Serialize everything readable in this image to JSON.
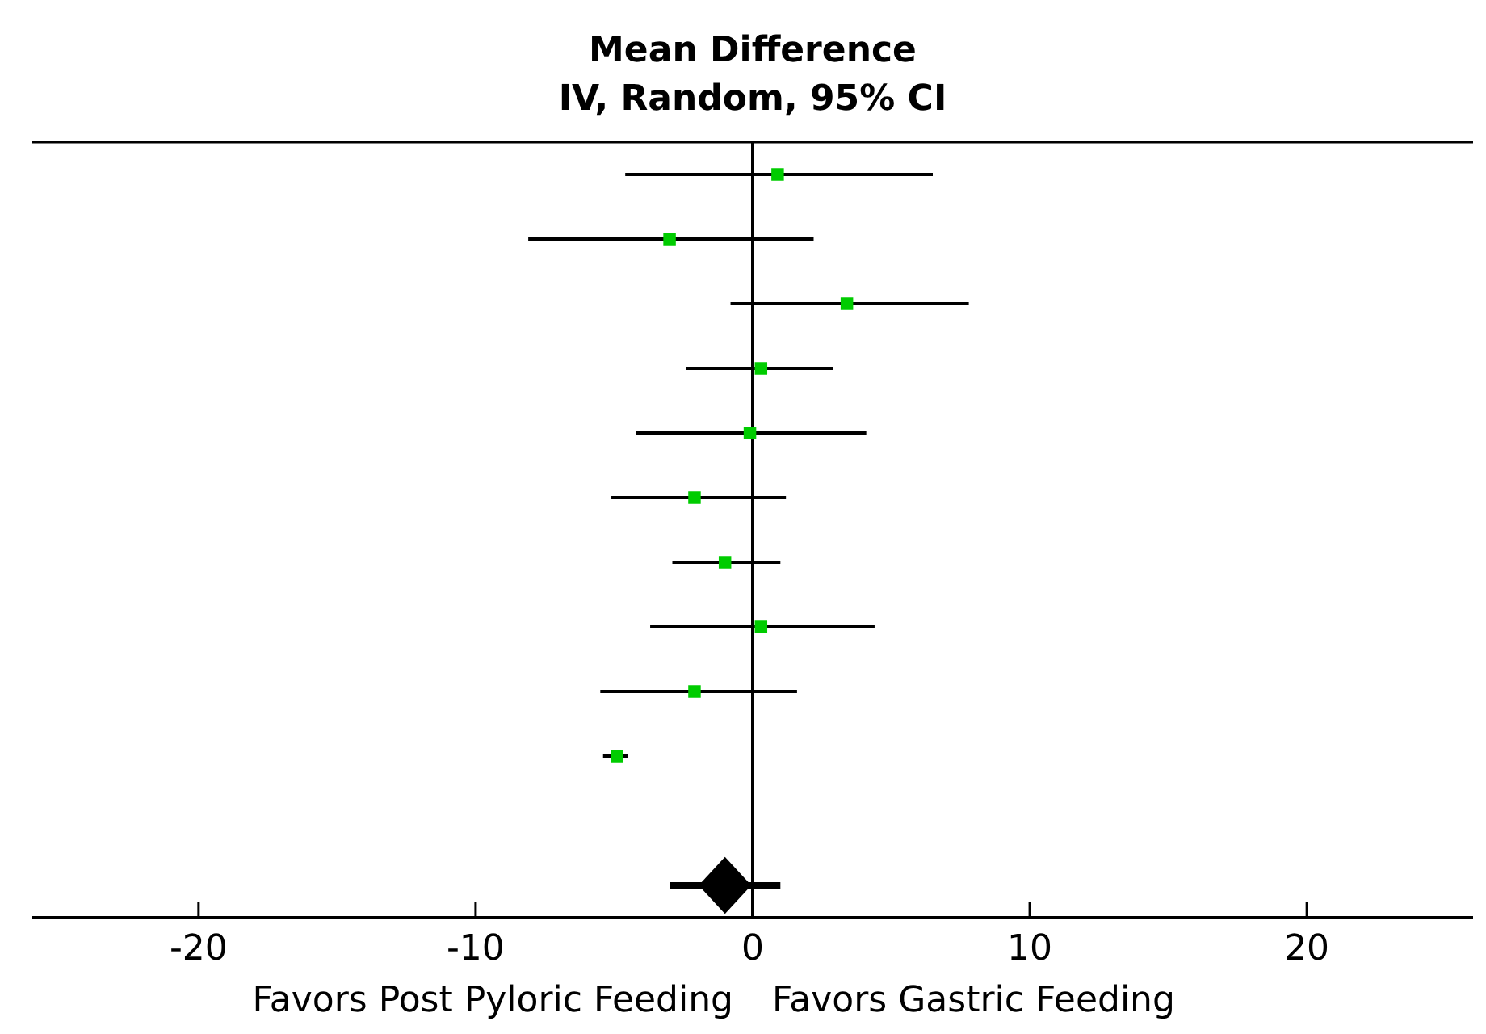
{
  "chart_data": {
    "type": "scatter",
    "orientation": "horizontal",
    "title": "Mean Difference",
    "subtitle": "IV, Random, 95% CI",
    "categories": [
      null,
      null,
      null,
      null,
      null,
      null,
      null,
      null,
      null,
      null,
      null,
      null
    ],
    "series": [
      {
        "color": "#00cc00",
        "marker": "square",
        "values": [
          0.9,
          -3.0,
          3.4,
          0.3,
          -0.1,
          -2.1,
          -1.0,
          0.3,
          -2.1,
          -4.9,
          null,
          null
        ],
        "errors": [
          [
            -4.6,
            6.5
          ],
          [
            -8.1,
            2.2
          ],
          [
            -0.8,
            7.8
          ],
          [
            -2.4,
            2.9
          ],
          [
            -4.2,
            4.1
          ],
          [
            -5.1,
            1.2
          ],
          [
            -2.9,
            1.0
          ],
          [
            -3.7,
            4.4
          ],
          [
            -5.5,
            1.6
          ],
          [
            -5.4,
            -4.5
          ],
          null,
          null
        ]
      },
      {
        "color": "#000000",
        "marker": "diamond",
        "values": [
          null,
          null,
          null,
          null,
          null,
          null,
          null,
          null,
          null,
          null,
          null,
          -1.0
        ],
        "errors": [
          null,
          null,
          null,
          null,
          null,
          null,
          null,
          null,
          null,
          null,
          null,
          [
            -3.0,
            1.0
          ]
        ]
      }
    ],
    "xlim": [
      -26,
      26
    ],
    "xticks": [
      -20,
      -10,
      0,
      10,
      20
    ],
    "tick_labels": "x",
    "ref_lines": [
      {
        "axis": "x",
        "value": 0,
        "color": "#000000"
      }
    ],
    "annotations": [
      "Favors Post Pyloric Feeding",
      "Favors Gastric Feeding"
    ]
  }
}
